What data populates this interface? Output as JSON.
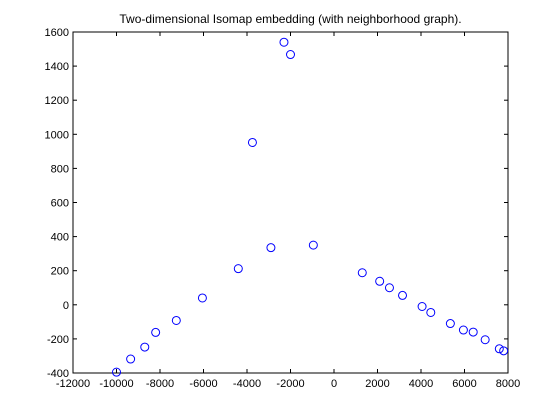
{
  "chart_data": {
    "type": "scatter",
    "title": "Two-dimensional Isomap embedding (with neighborhood graph).",
    "xlabel": "",
    "ylabel": "",
    "xlim": [
      -12000,
      8000
    ],
    "ylim": [
      -400,
      1600
    ],
    "xticks": [
      -12000,
      -10000,
      -8000,
      -6000,
      -4000,
      -2000,
      0,
      2000,
      4000,
      6000,
      8000
    ],
    "yticks": [
      -400,
      -200,
      0,
      200,
      400,
      600,
      800,
      1000,
      1200,
      1400,
      1600
    ],
    "grid": false,
    "marker": "open-circle",
    "marker_color": "#0000ff",
    "points": [
      {
        "x": -10000,
        "y": -395
      },
      {
        "x": -9350,
        "y": -318
      },
      {
        "x": -8700,
        "y": -248
      },
      {
        "x": -8200,
        "y": -162
      },
      {
        "x": -7250,
        "y": -92
      },
      {
        "x": -6050,
        "y": 40
      },
      {
        "x": -4400,
        "y": 212
      },
      {
        "x": -3750,
        "y": 952
      },
      {
        "x": -2900,
        "y": 335
      },
      {
        "x": -2300,
        "y": 1540
      },
      {
        "x": -2000,
        "y": 1468
      },
      {
        "x": -950,
        "y": 350
      },
      {
        "x": 1300,
        "y": 188
      },
      {
        "x": 2100,
        "y": 138
      },
      {
        "x": 2550,
        "y": 100
      },
      {
        "x": 3150,
        "y": 55
      },
      {
        "x": 4050,
        "y": -10
      },
      {
        "x": 4450,
        "y": -45
      },
      {
        "x": 5350,
        "y": -110
      },
      {
        "x": 5950,
        "y": -148
      },
      {
        "x": 6400,
        "y": -160
      },
      {
        "x": 6950,
        "y": -205
      },
      {
        "x": 7600,
        "y": -258
      },
      {
        "x": 7800,
        "y": -270
      }
    ]
  }
}
